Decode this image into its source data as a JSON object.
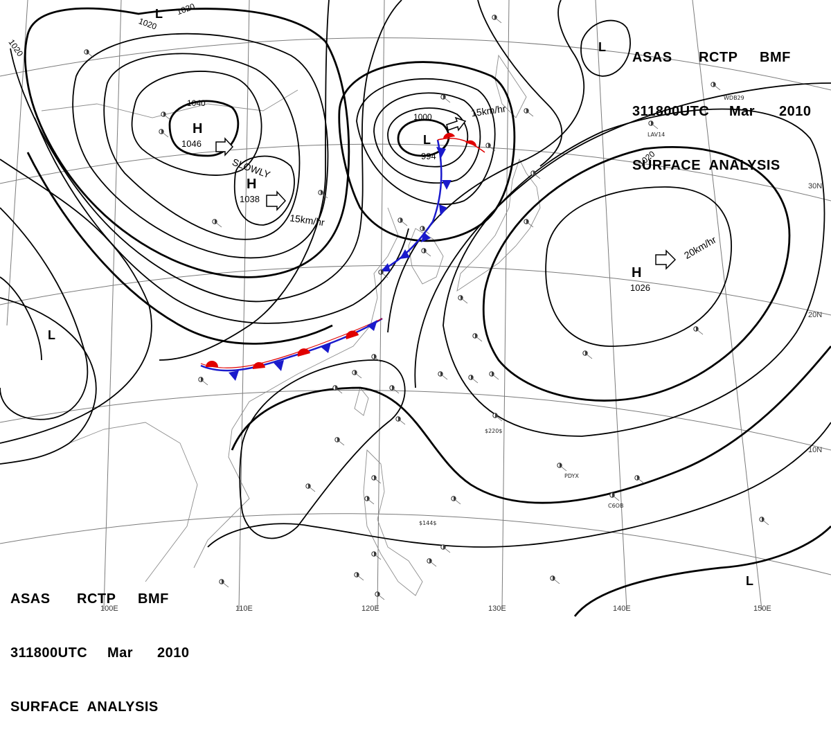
{
  "header": {
    "line1": [
      "ASAS",
      "RCTP",
      "BMF"
    ],
    "line2": [
      "311800UTC",
      "Mar",
      "2010"
    ],
    "line3": "SURFACE  ANALYSIS"
  },
  "colors": {
    "high": "#1a1acc",
    "low": "#e00000",
    "cold_front": "#1a1acc",
    "warm_front": "#e00000",
    "isobar": "#000000",
    "grid": "#7a7a7a"
  },
  "pressure_centers": [
    {
      "type": "H",
      "value": "1046"
    },
    {
      "type": "H",
      "value": "1038"
    },
    {
      "type": "L",
      "value": "994"
    },
    {
      "type": "H",
      "value": "1026"
    },
    {
      "type": "L",
      "value": ""
    },
    {
      "type": "L",
      "value": ""
    },
    {
      "type": "L",
      "value": ""
    },
    {
      "type": "L",
      "value": ""
    }
  ],
  "isobar_labels": [
    "1020",
    "1020",
    "1020",
    "1040",
    "1000",
    "1020"
  ],
  "motion_labels": [
    "SLOWLY",
    "15km/hr",
    "15km/hr",
    "20km/hr"
  ],
  "longitude_labels": [
    "100E",
    "110E",
    "120E",
    "130E",
    "140E",
    "150E"
  ],
  "latitude_labels": [
    "30N",
    "20N",
    "10N"
  ],
  "station_ids": [
    "LAV14",
    "WDB29",
    "PDYX",
    "C6OB",
    "$220$",
    "$144$"
  ]
}
